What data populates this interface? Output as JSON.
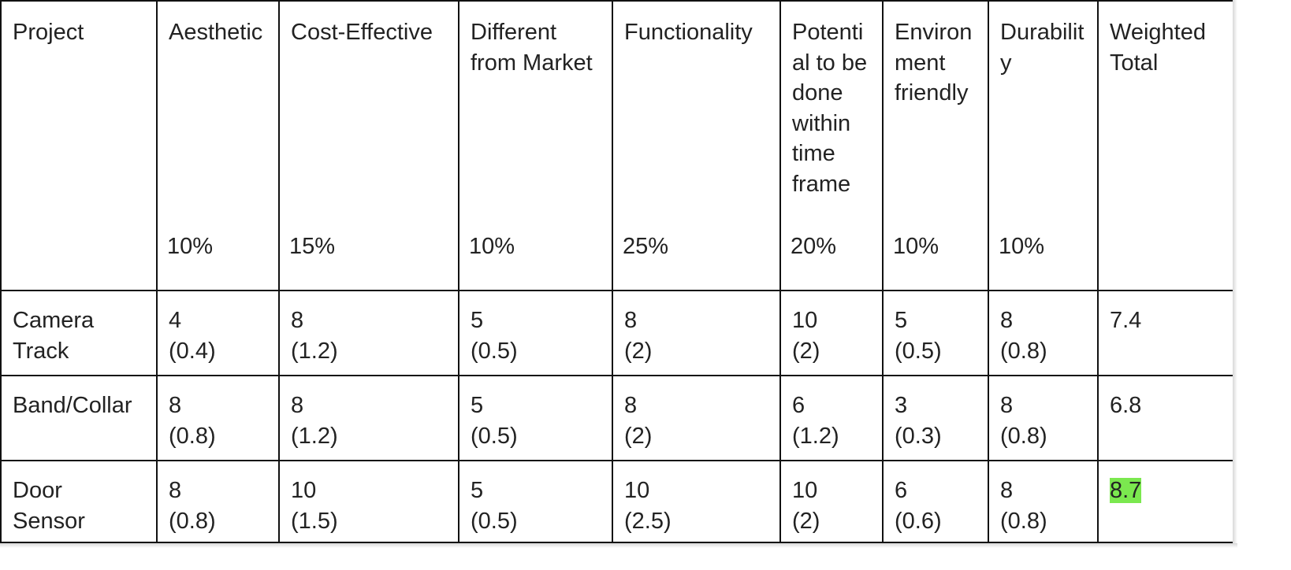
{
  "table": {
    "header": [
      {
        "label": "Project",
        "weight": ""
      },
      {
        "label": "Aesthetic",
        "weight": "10%"
      },
      {
        "label": "Cost-Effective",
        "weight": "15%"
      },
      {
        "label": "Different from Market",
        "weight": "10%"
      },
      {
        "label": "Functionality",
        "weight": "25%"
      },
      {
        "label": "Potenti al to be done within time frame",
        "weight": "20%"
      },
      {
        "label": "Environ ment friendly",
        "weight": "10%"
      },
      {
        "label": "Durabilit y",
        "weight": "10%"
      },
      {
        "label": "Weighted Total",
        "weight": ""
      }
    ],
    "rows": [
      {
        "project": "Camera Track",
        "cells": [
          {
            "score": "4",
            "weighted": "(0.4)"
          },
          {
            "score": "8",
            "weighted": "(1.2)"
          },
          {
            "score": "5",
            "weighted": "(0.5)"
          },
          {
            "score": "8",
            "weighted": "(2)"
          },
          {
            "score": "10",
            "weighted": "(2)"
          },
          {
            "score": "5",
            "weighted": "(0.5)"
          },
          {
            "score": "8",
            "weighted": "(0.8)"
          }
        ],
        "total": "7.4",
        "highlight": false
      },
      {
        "project": "Band/Collar",
        "cells": [
          {
            "score": "8",
            "weighted": "(0.8)"
          },
          {
            "score": "8",
            "weighted": "(1.2)"
          },
          {
            "score": "5",
            "weighted": "(0.5)"
          },
          {
            "score": "8",
            "weighted": "(2)"
          },
          {
            "score": "6",
            "weighted": "(1.2)"
          },
          {
            "score": "3",
            "weighted": "(0.3)"
          },
          {
            "score": "8",
            "weighted": "(0.8)"
          }
        ],
        "total": "6.8",
        "highlight": false
      },
      {
        "project": "Door Sensor",
        "cells": [
          {
            "score": "8",
            "weighted": "(0.8)"
          },
          {
            "score": "10",
            "weighted": "(1.5)"
          },
          {
            "score": "5",
            "weighted": "(0.5)"
          },
          {
            "score": "10",
            "weighted": "(2.5)"
          },
          {
            "score": "10",
            "weighted": "(2)"
          },
          {
            "score": "6",
            "weighted": "(0.6)"
          },
          {
            "score": "8",
            "weighted": "(0.8)"
          }
        ],
        "total": "8.7",
        "highlight": true
      }
    ],
    "highlight_color": "#7be84f"
  }
}
